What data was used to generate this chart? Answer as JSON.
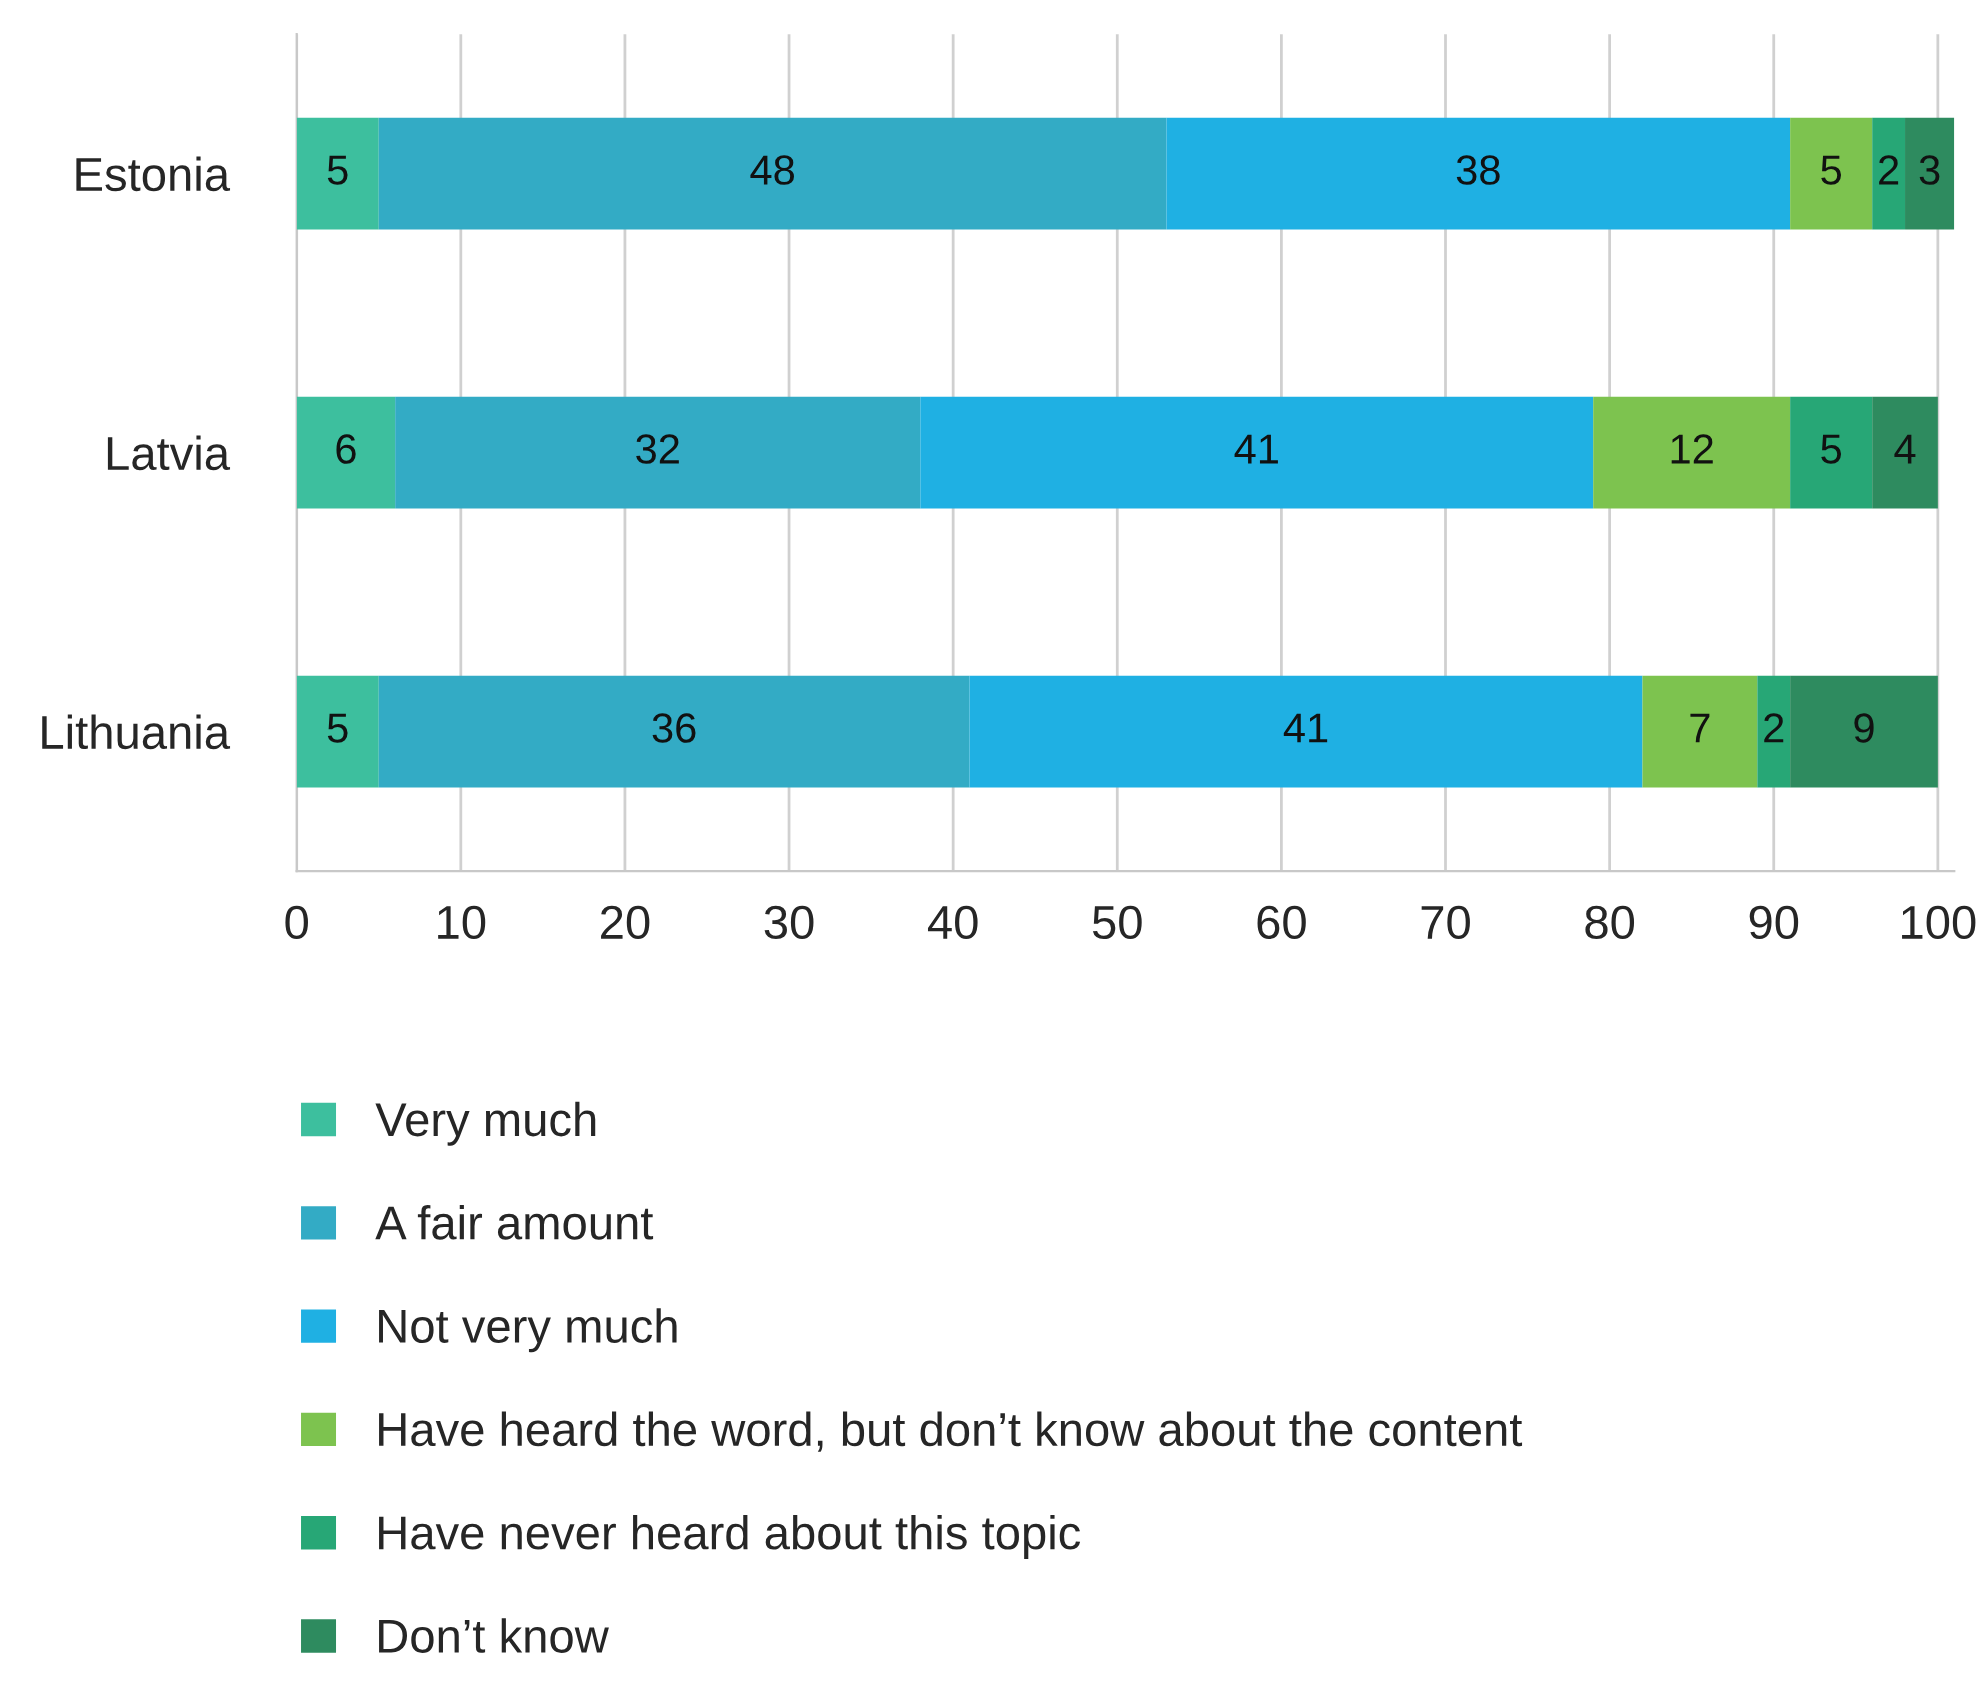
{
  "chart_data": {
    "type": "bar",
    "orientation": "horizontal",
    "stacked": true,
    "categories": [
      "Estonia",
      "Latvia",
      "Lithuania"
    ],
    "series": [
      {
        "name": "Very much",
        "color": "#3dbf9e",
        "values": [
          5,
          6,
          5
        ]
      },
      {
        "name": "A fair amount",
        "color": "#33abc5",
        "values": [
          48,
          32,
          36
        ]
      },
      {
        "name": "Not very much",
        "color": "#1fb0e3",
        "values": [
          38,
          41,
          41
        ]
      },
      {
        "name": "Have heard the word, but don’t know about the content",
        "color": "#7dc34f",
        "values": [
          5,
          12,
          7
        ]
      },
      {
        "name": "Have never heard about this topic",
        "color": "#27a776",
        "values": [
          2,
          5,
          2
        ]
      },
      {
        "name": "Don’t know",
        "color": "#2e8b5f",
        "values": [
          3,
          4,
          9
        ]
      }
    ],
    "xlim": [
      0,
      101
    ],
    "xticks": [
      0,
      10,
      20,
      30,
      40,
      50,
      60,
      70,
      80,
      90,
      100
    ],
    "grid": "x",
    "legend": "bottom",
    "data_labels": true
  }
}
